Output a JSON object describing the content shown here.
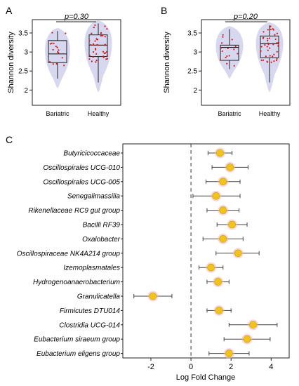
{
  "panels": {
    "a": "A",
    "b": "B",
    "c": "C"
  },
  "chart_data": [
    {
      "type": "violin",
      "title": "p=0.30",
      "ylabel": "Shannon diversity",
      "yticks": [
        2,
        2.5,
        3,
        3.5
      ],
      "ylim": [
        1.6,
        3.85
      ],
      "categories": [
        "Bariatric",
        "Healthy"
      ],
      "box": [
        {
          "min": 2.3,
          "q1": 2.72,
          "median": 2.95,
          "q3": 3.3,
          "max": 3.55
        },
        {
          "min": 2.2,
          "q1": 2.88,
          "median": 3.18,
          "q3": 3.45,
          "max": 3.75
        }
      ]
    },
    {
      "type": "violin",
      "title": "p=0.20",
      "ylabel": "Shannon diversity",
      "yticks": [
        2,
        2.5,
        3,
        3.5
      ],
      "ylim": [
        1.6,
        3.85
      ],
      "categories": [
        "Bariatric",
        "Healthy"
      ],
      "box": [
        {
          "min": 2.55,
          "q1": 2.78,
          "median": 3.12,
          "q3": 3.18,
          "max": 3.6
        },
        {
          "min": 2.2,
          "q1": 2.85,
          "median": 3.22,
          "q3": 3.42,
          "max": 3.7
        }
      ]
    },
    {
      "type": "forest",
      "xlabel": "Log Fold Change",
      "xticks": [
        -2,
        0,
        2,
        4
      ],
      "xlim": [
        -3.4,
        4.9
      ],
      "reference_line": 0,
      "marker_color": "#f0c419",
      "taxa": [
        {
          "name": "Butyricicoccaceae",
          "lfc": 1.45,
          "lo": 0.85,
          "hi": 2.05
        },
        {
          "name": "Oscillospirales UCG-010",
          "lfc": 1.95,
          "lo": 1.05,
          "hi": 2.85
        },
        {
          "name": "Oscillospirales UCG-005",
          "lfc": 1.6,
          "lo": 0.75,
          "hi": 2.45
        },
        {
          "name": "Senegalimassilia",
          "lfc": 1.25,
          "lo": 0.1,
          "hi": 2.45
        },
        {
          "name": "Rikenellaceae RC9 gut group",
          "lfc": 1.6,
          "lo": 0.8,
          "hi": 2.4
        },
        {
          "name": "Bacilli RF39",
          "lfc": 2.05,
          "lo": 1.3,
          "hi": 2.8
        },
        {
          "name": "Oxalobacter",
          "lfc": 1.6,
          "lo": 0.6,
          "hi": 2.6
        },
        {
          "name": "Oscillospiraceae NK4A214 group",
          "lfc": 2.35,
          "lo": 1.25,
          "hi": 3.4
        },
        {
          "name": "Izemoplasmatales",
          "lfc": 1.0,
          "lo": 0.4,
          "hi": 1.6
        },
        {
          "name": "Hydrogenoanaerobacterium",
          "lfc": 1.35,
          "lo": 0.8,
          "hi": 1.9
        },
        {
          "name": "Granulicatella",
          "lfc": -1.9,
          "lo": -2.85,
          "hi": -0.95
        },
        {
          "name": "Firmicutes DTU014",
          "lfc": 1.4,
          "lo": 0.8,
          "hi": 2.0
        },
        {
          "name": "Clostridia UCG-014",
          "lfc": 3.1,
          "lo": 1.9,
          "hi": 4.3
        },
        {
          "name": "Eubacterium siraeum group",
          "lfc": 2.8,
          "lo": 1.65,
          "hi": 3.95
        },
        {
          "name": "Eubacterium eligens group",
          "lfc": 1.9,
          "lo": 0.9,
          "hi": 2.9
        }
      ]
    }
  ]
}
